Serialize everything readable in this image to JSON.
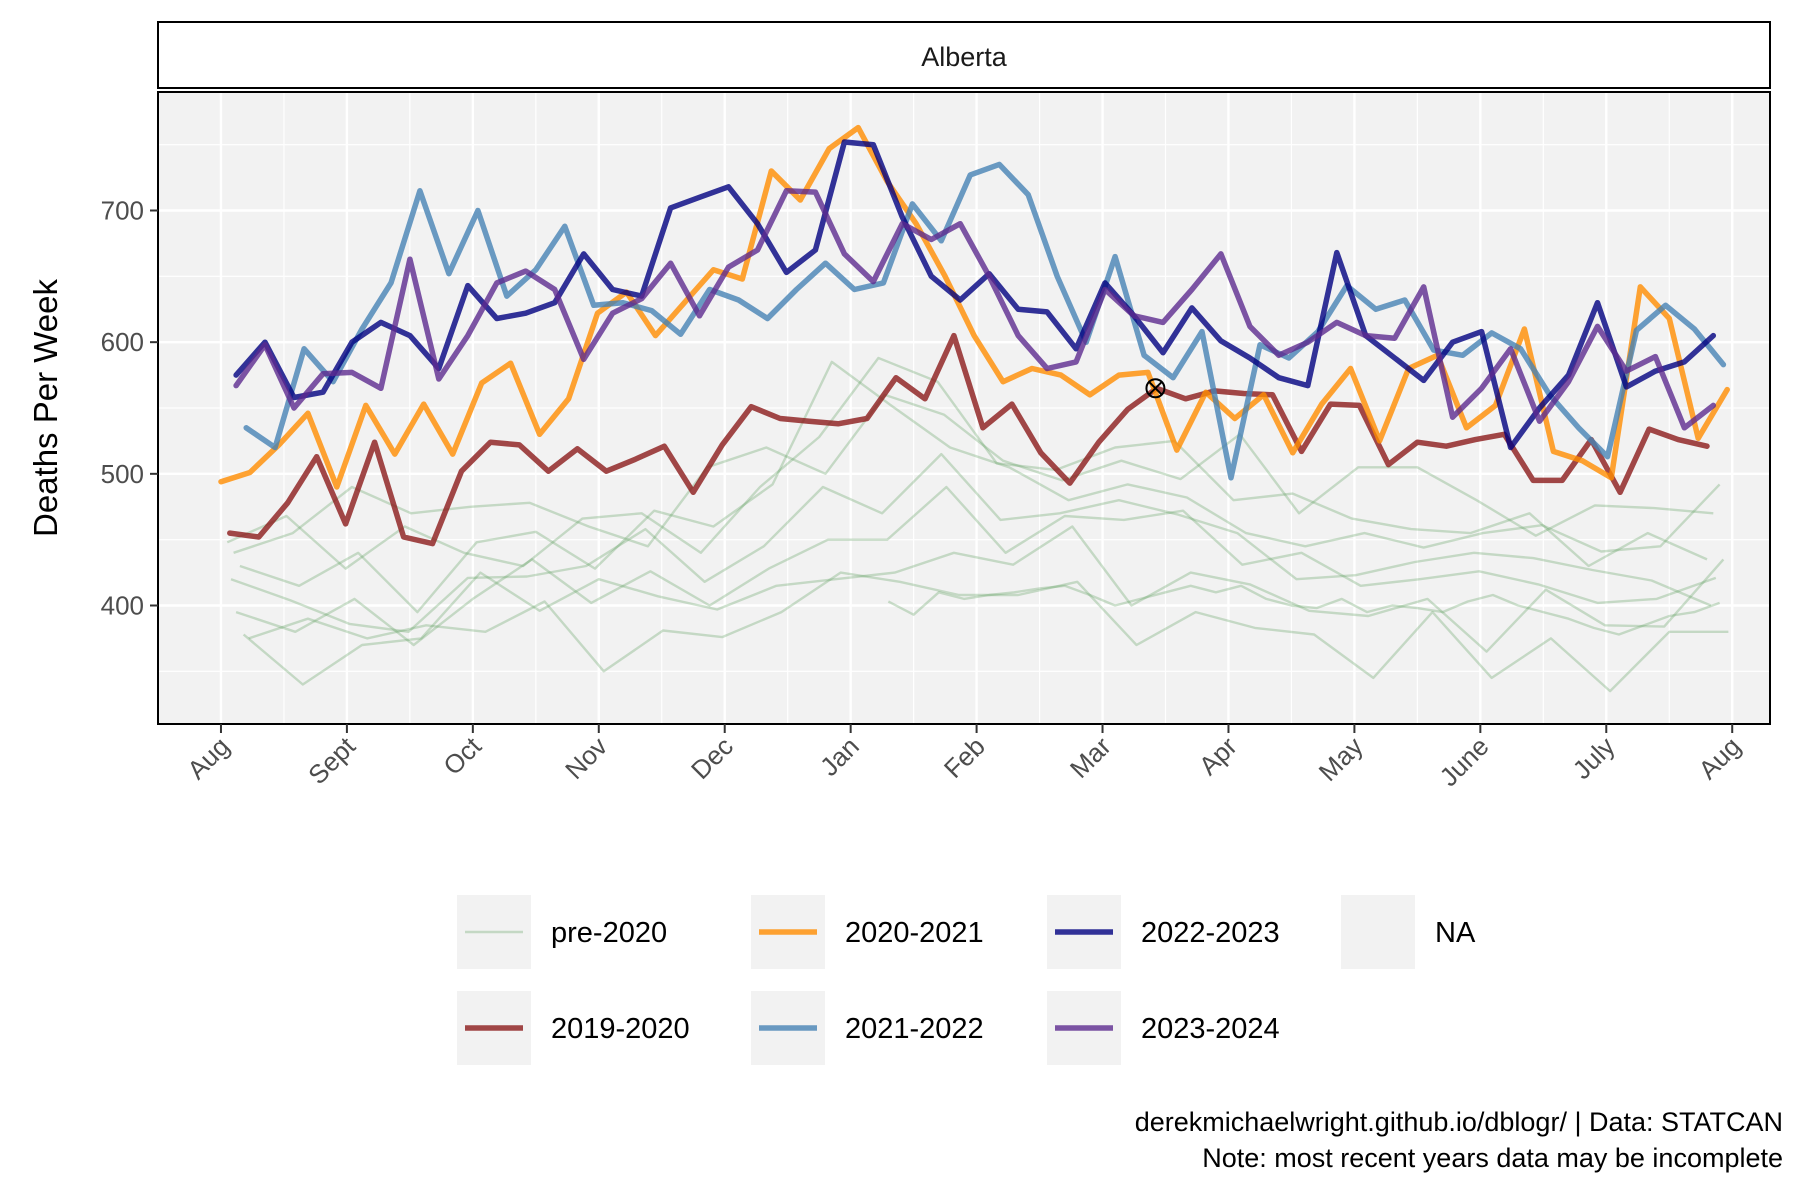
{
  "colors": {
    "panel_bg": "#f2f2f2",
    "grid": "#ffffff",
    "pre2020": "#5a9a5a",
    "s2019_2020": "#8b1a1a",
    "s2020_2021": "#ff8c00",
    "s2021_2022": "#4682b4",
    "s2022_2023": "#000080",
    "s2023_2024": "#5d2a8f"
  },
  "chart_data": {
    "type": "line",
    "facet_title": "Alberta",
    "ylabel": "Deaths Per Week",
    "xlabel": "",
    "ylim": [
      310,
      790
    ],
    "yticks": [
      400,
      500,
      600,
      700
    ],
    "xlim": [
      -0.5,
      12.3
    ],
    "xticks": [
      0,
      1,
      2,
      3,
      4,
      5,
      6,
      7,
      8,
      9,
      10,
      11,
      12
    ],
    "xtick_labels": [
      "Aug",
      "Sept",
      "Oct",
      "Nov",
      "Dec",
      "Jan",
      "Feb",
      "Mar",
      "Apr",
      "May",
      "June",
      "July",
      "Aug"
    ],
    "grid": true,
    "legend_position": "bottom",
    "legend": [
      {
        "label": "pre-2020",
        "key": "pre2020"
      },
      {
        "label": "2019-2020",
        "key": "s2019_2020"
      },
      {
        "label": "2020-2021",
        "key": "s2020_2021"
      },
      {
        "label": "2021-2022",
        "key": "s2021_2022"
      },
      {
        "label": "2022-2023",
        "key": "s2022_2023"
      },
      {
        "label": "2023-2024",
        "key": "s2023_2024"
      },
      {
        "label": "NA",
        "key": "na"
      }
    ],
    "marker": {
      "x": 7.42,
      "y": 565,
      "shape": "circle-cross"
    },
    "series": [
      {
        "name": "2019-2020",
        "key": "s2019_2020",
        "x": [
          0.07,
          0.3,
          0.53,
          0.76,
          0.99,
          1.22,
          1.45,
          1.68,
          1.91,
          2.14,
          2.37,
          2.6,
          2.83,
          3.06,
          3.29,
          3.52,
          3.75,
          3.98,
          4.21,
          4.44,
          4.67,
          4.9,
          5.13,
          5.36,
          5.59,
          5.82,
          6.05,
          6.28,
          6.51,
          6.74,
          6.97,
          7.2,
          7.43,
          7.66,
          7.89,
          8.12,
          8.35,
          8.58,
          8.81,
          9.04,
          9.27,
          9.5,
          9.73,
          9.96,
          10.19,
          10.42,
          10.65,
          10.88,
          11.11,
          11.34,
          11.57,
          11.8
        ],
        "y": [
          455,
          452,
          478,
          513,
          462,
          524,
          452,
          447,
          502,
          524,
          522,
          502,
          519,
          502,
          511,
          521,
          486,
          522,
          551,
          542,
          540,
          538,
          542,
          573,
          557,
          605,
          535,
          553,
          516,
          493,
          524,
          549,
          565,
          557,
          563,
          561,
          560,
          517,
          553,
          552,
          507,
          524,
          521,
          526,
          530,
          495,
          495,
          526,
          486,
          534,
          526,
          521
        ]
      },
      {
        "name": "2020-2021",
        "key": "s2020_2021",
        "x": [
          0.0,
          0.23,
          0.46,
          0.69,
          0.92,
          1.15,
          1.38,
          1.61,
          1.84,
          2.07,
          2.3,
          2.53,
          2.76,
          2.99,
          3.22,
          3.45,
          3.68,
          3.91,
          4.14,
          4.37,
          4.6,
          4.83,
          5.06,
          5.29,
          5.52,
          5.75,
          5.98,
          6.21,
          6.44,
          6.67,
          6.9,
          7.13,
          7.36,
          7.59,
          7.82,
          8.05,
          8.28,
          8.51,
          8.74,
          8.97,
          9.2,
          9.43,
          9.66,
          9.89,
          10.12,
          10.35,
          10.58,
          10.81,
          11.04,
          11.27,
          11.5,
          11.73,
          11.96
        ],
        "y": [
          494,
          501,
          522,
          546,
          490,
          552,
          515,
          553,
          515,
          569,
          584,
          530,
          557,
          622,
          638,
          605,
          630,
          655,
          648,
          730,
          708,
          747,
          763,
          722,
          690,
          650,
          605,
          570,
          580,
          575,
          560,
          575,
          577,
          518,
          562,
          542,
          560,
          516,
          553,
          580,
          525,
          580,
          590,
          535,
          552,
          610,
          517,
          510,
          497,
          642,
          618,
          527,
          564
        ]
      },
      {
        "name": "2021-2022",
        "key": "s2021_2022",
        "x": [
          0.2,
          0.43,
          0.66,
          0.89,
          1.12,
          1.35,
          1.58,
          1.81,
          2.04,
          2.27,
          2.5,
          2.73,
          2.96,
          3.19,
          3.42,
          3.65,
          3.88,
          4.11,
          4.34,
          4.57,
          4.8,
          5.03,
          5.26,
          5.49,
          5.72,
          5.95,
          6.18,
          6.41,
          6.64,
          6.87,
          7.1,
          7.33,
          7.56,
          7.79,
          8.02,
          8.25,
          8.48,
          8.71,
          8.94,
          9.17,
          9.4,
          9.63,
          9.86,
          10.09,
          10.32,
          10.55,
          10.78,
          11.01,
          11.24,
          11.47,
          11.7,
          11.93
        ],
        "y": [
          535,
          520,
          595,
          570,
          610,
          645,
          715,
          652,
          700,
          635,
          655,
          688,
          628,
          630,
          624,
          606,
          640,
          632,
          618,
          640,
          660,
          640,
          645,
          705,
          677,
          727,
          735,
          712,
          650,
          600,
          665,
          590,
          573,
          608,
          497,
          598,
          588,
          608,
          643,
          625,
          632,
          594,
          590,
          607,
          595,
          560,
          535,
          513,
          609,
          628,
          610,
          583
        ]
      },
      {
        "name": "2022-2023",
        "key": "s2022_2023",
        "x": [
          0.12,
          0.35,
          0.58,
          0.81,
          1.04,
          1.27,
          1.5,
          1.73,
          1.96,
          2.19,
          2.42,
          2.65,
          2.88,
          3.11,
          3.34,
          3.57,
          3.8,
          4.03,
          4.26,
          4.49,
          4.72,
          4.95,
          5.18,
          5.41,
          5.64,
          5.87,
          6.1,
          6.33,
          6.56,
          6.79,
          7.02,
          7.25,
          7.48,
          7.71,
          7.94,
          8.17,
          8.4,
          8.63,
          8.86,
          9.09,
          9.32,
          9.55,
          9.78,
          10.01,
          10.24,
          10.47,
          10.7,
          10.93,
          11.16,
          11.39,
          11.62,
          11.85
        ],
        "y": [
          575,
          600,
          558,
          562,
          600,
          615,
          605,
          580,
          643,
          618,
          622,
          630,
          667,
          640,
          635,
          702,
          710,
          718,
          690,
          653,
          670,
          752,
          750,
          695,
          650,
          632,
          652,
          625,
          623,
          595,
          645,
          620,
          592,
          626,
          601,
          588,
          573,
          567,
          668,
          605,
          588,
          571,
          600,
          608,
          520,
          550,
          575,
          630,
          566,
          578,
          585,
          605
        ]
      },
      {
        "name": "2023-2024",
        "key": "s2023_2024",
        "x": [
          0.12,
          0.35,
          0.58,
          0.81,
          1.04,
          1.27,
          1.5,
          1.73,
          1.96,
          2.19,
          2.42,
          2.65,
          2.88,
          3.11,
          3.34,
          3.57,
          3.8,
          4.03,
          4.26,
          4.49,
          4.72,
          4.95,
          5.18,
          5.41,
          5.64,
          5.87,
          6.1,
          6.33,
          6.56,
          6.79,
          7.02,
          7.25,
          7.48,
          7.71,
          7.94,
          8.17,
          8.4,
          8.63,
          8.86,
          9.09,
          9.32,
          9.55,
          9.78,
          10.01,
          10.24,
          10.47,
          10.7,
          10.93,
          11.16,
          11.39,
          11.62,
          11.85
        ],
        "y": [
          567,
          598,
          550,
          576,
          577,
          565,
          663,
          572,
          605,
          645,
          654,
          640,
          587,
          622,
          633,
          660,
          620,
          657,
          670,
          715,
          714,
          667,
          646,
          690,
          678,
          690,
          650,
          605,
          580,
          585,
          640,
          620,
          615,
          640,
          667,
          612,
          590,
          600,
          615,
          605,
          603,
          642,
          543,
          565,
          595,
          540,
          570,
          612,
          578,
          589,
          535,
          552
        ]
      },
      {
        "name": "pre-2020",
        "key": "pre2020",
        "x": [
          0.05,
          0.52,
          0.99,
          1.46,
          1.93,
          2.4,
          2.87,
          3.34,
          3.81,
          4.28,
          4.75,
          5.22,
          5.69,
          6.16,
          6.63,
          7.1,
          7.57,
          8.04,
          8.51,
          8.98,
          9.45,
          9.92,
          10.39,
          10.86,
          11.33,
          11.8
        ],
        "y": [
          448,
          468,
          428,
          460,
          440,
          430,
          466,
          470,
          440,
          490,
          528,
          588,
          570,
          508,
          503,
          520,
          525,
          480,
          485,
          466,
          458,
          455,
          470,
          430,
          455,
          435
        ]
      },
      {
        "name": "pre-2020",
        "key": "pre2020",
        "x": [
          0.1,
          0.57,
          1.04,
          1.51,
          1.98,
          2.45,
          2.92,
          3.39,
          3.86,
          4.33,
          4.8,
          5.27,
          5.74,
          6.21,
          6.68,
          7.15,
          7.62,
          8.09,
          8.56,
          9.03,
          9.5,
          9.97,
          10.44,
          10.91,
          11.38,
          11.85
        ],
        "y": [
          440,
          455,
          490,
          470,
          475,
          478,
          460,
          445,
          505,
          520,
          500,
          560,
          545,
          510,
          495,
          510,
          496,
          530,
          470,
          505,
          505,
          480,
          453,
          476,
          474,
          470
        ]
      },
      {
        "name": "pre-2020",
        "key": "pre2020",
        "x": [
          0.15,
          0.62,
          1.09,
          1.56,
          2.03,
          2.5,
          2.97,
          3.44,
          3.91,
          4.38,
          4.85,
          5.32,
          5.79,
          6.26,
          6.73,
          7.2,
          7.67,
          8.14,
          8.61,
          9.08,
          9.55,
          10.02,
          10.49,
          10.96,
          11.43,
          11.9
        ],
        "y": [
          430,
          415,
          440,
          395,
          448,
          456,
          428,
          472,
          460,
          492,
          585,
          552,
          520,
          505,
          480,
          492,
          482,
          455,
          445,
          455,
          444,
          455,
          461,
          441,
          445,
          492
        ]
      },
      {
        "name": "pre-2020",
        "key": "pre2020",
        "x": [
          0.08,
          0.55,
          1.02,
          1.49,
          1.96,
          2.43,
          2.9,
          3.37,
          3.84,
          4.31,
          4.78,
          5.25,
          5.72,
          6.19,
          6.66,
          7.13,
          7.6,
          8.07,
          8.54,
          9.01,
          9.48,
          9.95,
          10.42,
          10.89,
          11.36,
          11.83
        ],
        "y": [
          420,
          404,
          386,
          380,
          421,
          422,
          430,
          458,
          418,
          445,
          490,
          470,
          515,
          465,
          470,
          480,
          469,
          455,
          420,
          423,
          433,
          440,
          436,
          427,
          419,
          400
        ]
      },
      {
        "name": "pre-2020",
        "key": "pre2020",
        "x": [
          0.12,
          0.59,
          1.06,
          1.53,
          2.0,
          2.47,
          2.94,
          3.41,
          3.88,
          4.35,
          4.82,
          5.29,
          5.76,
          6.23,
          6.7,
          7.17,
          7.64,
          8.11,
          8.58,
          9.05,
          9.52,
          9.99,
          10.46,
          10.93,
          11.4,
          11.87
        ],
        "y": [
          395,
          380,
          405,
          370,
          405,
          435,
          402,
          426,
          400,
          428,
          450,
          450,
          490,
          440,
          468,
          465,
          472,
          431,
          440,
          415,
          420,
          426,
          416,
          402,
          405,
          421
        ]
      },
      {
        "name": "pre-2020",
        "key": "pre2020",
        "x": [
          0.18,
          0.65,
          1.12,
          1.59,
          2.06,
          2.53,
          3.0,
          3.47,
          3.94,
          4.41,
          4.88,
          5.35,
          5.82,
          6.29,
          6.76,
          7.23,
          7.7,
          8.17,
          8.64,
          9.11,
          9.58,
          10.05,
          10.52,
          10.99,
          11.46,
          11.93
        ],
        "y": [
          378,
          340,
          370,
          375,
          425,
          396,
          420,
          407,
          397,
          415,
          420,
          425,
          440,
          431,
          460,
          400,
          425,
          416,
          396,
          392,
          405,
          365,
          412,
          385,
          384,
          435
        ]
      },
      {
        "name": "pre-2020",
        "key": "pre2020",
        "x": [
          0.22,
          0.69,
          1.16,
          1.63,
          2.1,
          2.57,
          3.04,
          3.51,
          3.98,
          4.45,
          4.92,
          5.39,
          5.86,
          6.33,
          6.8,
          7.27,
          7.74,
          8.21,
          8.68,
          9.15,
          9.62,
          10.09,
          10.56,
          11.03,
          11.5,
          11.97
        ],
        "y": [
          375,
          390,
          375,
          385,
          380,
          403,
          350,
          381,
          376,
          395,
          425,
          418,
          408,
          408,
          418,
          370,
          395,
          383,
          378,
          345,
          395,
          345,
          375,
          335,
          380,
          380
        ]
      },
      {
        "name": "pre-2020",
        "key": "pre2020",
        "x": [
          5.3,
          5.5,
          5.7,
          5.9,
          6.1,
          6.3,
          6.5,
          6.7,
          6.9,
          7.1,
          7.3,
          7.5,
          7.7,
          7.9,
          8.1,
          8.3,
          8.5,
          8.7,
          8.9,
          9.1,
          9.3,
          9.5,
          9.7,
          9.9,
          10.1,
          10.3,
          10.5,
          10.7,
          10.9,
          11.1,
          11.3,
          11.5,
          11.7,
          11.9
        ],
        "y": [
          403,
          393,
          410,
          405,
          408,
          410,
          413,
          415,
          408,
          400,
          405,
          410,
          415,
          410,
          415,
          405,
          400,
          398,
          405,
          395,
          400,
          398,
          395,
          403,
          408,
          400,
          395,
          390,
          383,
          378,
          385,
          392,
          395,
          402
        ]
      }
    ]
  },
  "caption": {
    "line1": "derekmichaelwright.github.io/dblogr/ | Data: STATCAN",
    "line2": "Note: most recent years data may be incomplete"
  }
}
